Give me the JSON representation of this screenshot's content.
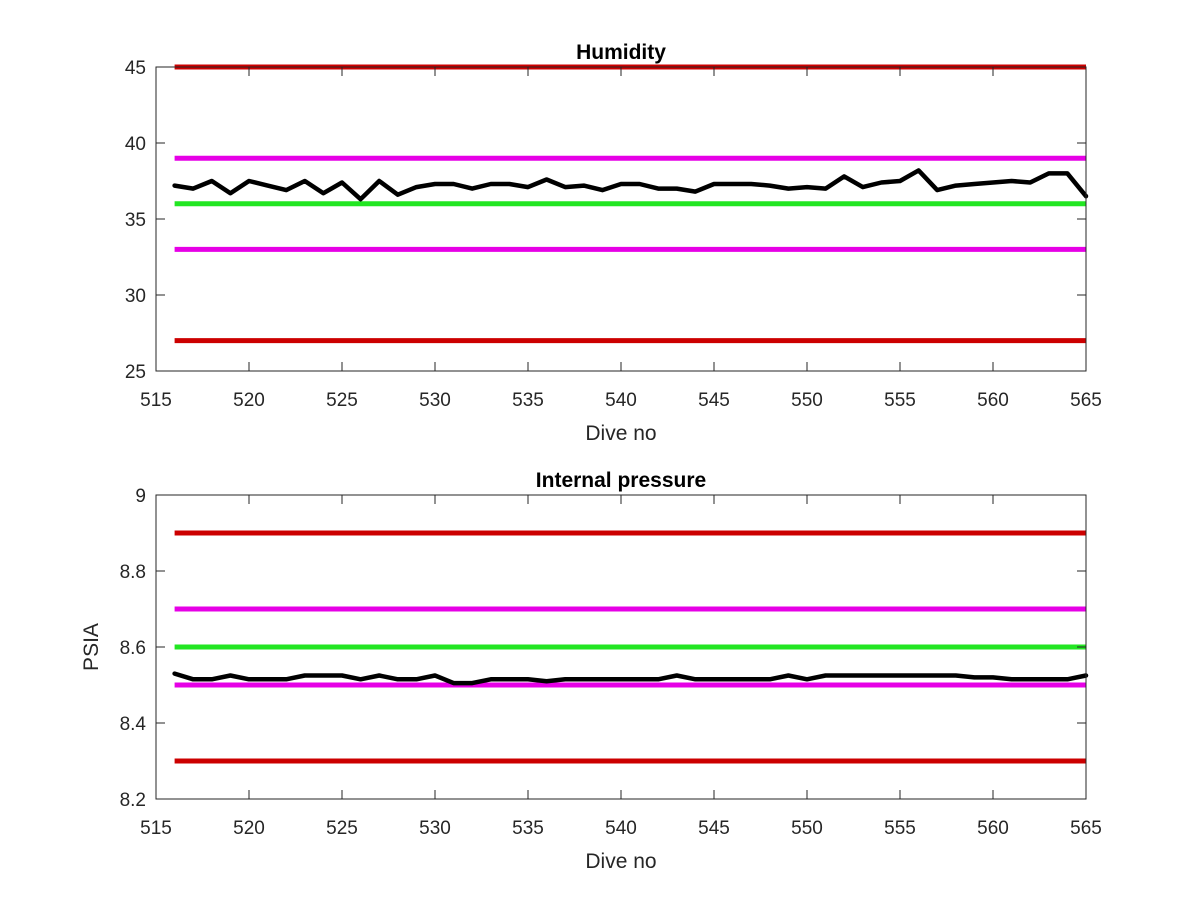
{
  "chart_data": [
    {
      "type": "line",
      "title": "Humidity",
      "xlabel": "Dive no",
      "ylabel": "",
      "xlim": [
        515,
        565
      ],
      "ylim": [
        25,
        45
      ],
      "xticks": [
        515,
        520,
        525,
        530,
        535,
        540,
        545,
        550,
        555,
        560,
        565
      ],
      "yticks": [
        25,
        30,
        35,
        40,
        45
      ],
      "grid": false,
      "reference_lines": [
        {
          "value": 45,
          "color": "#cc0000"
        },
        {
          "value": 39,
          "color": "#e600e6"
        },
        {
          "value": 36,
          "color": "#22e622"
        },
        {
          "value": 33,
          "color": "#e600e6"
        },
        {
          "value": 27,
          "color": "#cc0000"
        }
      ],
      "series": [
        {
          "color": "#000000",
          "x": [
            516,
            517,
            518,
            519,
            520,
            521,
            522,
            523,
            524,
            525,
            526,
            527,
            528,
            529,
            530,
            531,
            532,
            533,
            534,
            535,
            536,
            537,
            538,
            539,
            540,
            541,
            542,
            543,
            544,
            545,
            546,
            547,
            548,
            549,
            550,
            551,
            552,
            553,
            554,
            555,
            556,
            557,
            558,
            559,
            560,
            561,
            562,
            563,
            564,
            565
          ],
          "values": [
            37.2,
            37.0,
            37.5,
            36.7,
            37.5,
            37.2,
            36.9,
            37.5,
            36.7,
            37.4,
            36.3,
            37.5,
            36.6,
            37.1,
            37.3,
            37.3,
            37.0,
            37.3,
            37.3,
            37.1,
            37.6,
            37.1,
            37.2,
            36.9,
            37.3,
            37.3,
            37.0,
            37.0,
            36.8,
            37.3,
            37.3,
            37.3,
            37.2,
            37.0,
            37.1,
            37.0,
            37.8,
            37.1,
            37.4,
            37.5,
            38.2,
            36.9,
            37.2,
            37.3,
            37.4,
            37.5,
            37.4,
            38.0,
            38.0,
            36.5
          ]
        }
      ]
    },
    {
      "type": "line",
      "title": "Internal pressure",
      "xlabel": "Dive no",
      "ylabel": "PSIA",
      "xlim": [
        515,
        565
      ],
      "ylim": [
        8.2,
        9.0
      ],
      "xticks": [
        515,
        520,
        525,
        530,
        535,
        540,
        545,
        550,
        555,
        560,
        565
      ],
      "yticks": [
        8.2,
        8.4,
        8.6,
        8.8,
        9
      ],
      "grid": false,
      "reference_lines": [
        {
          "value": 8.9,
          "color": "#cc0000"
        },
        {
          "value": 8.7,
          "color": "#e600e6"
        },
        {
          "value": 8.6,
          "color": "#22e622"
        },
        {
          "value": 8.5,
          "color": "#e600e6"
        },
        {
          "value": 8.3,
          "color": "#cc0000"
        }
      ],
      "series": [
        {
          "color": "#000000",
          "x": [
            516,
            517,
            518,
            519,
            520,
            521,
            522,
            523,
            524,
            525,
            526,
            527,
            528,
            529,
            530,
            531,
            532,
            533,
            534,
            535,
            536,
            537,
            538,
            539,
            540,
            541,
            542,
            543,
            544,
            545,
            546,
            547,
            548,
            549,
            550,
            551,
            552,
            553,
            554,
            555,
            556,
            557,
            558,
            559,
            560,
            561,
            562,
            563,
            564,
            565
          ],
          "values": [
            8.53,
            8.515,
            8.515,
            8.525,
            8.515,
            8.515,
            8.515,
            8.525,
            8.525,
            8.525,
            8.515,
            8.525,
            8.515,
            8.515,
            8.525,
            8.505,
            8.505,
            8.515,
            8.515,
            8.515,
            8.51,
            8.515,
            8.515,
            8.515,
            8.515,
            8.515,
            8.515,
            8.525,
            8.515,
            8.515,
            8.515,
            8.515,
            8.515,
            8.525,
            8.515,
            8.525,
            8.525,
            8.525,
            8.525,
            8.525,
            8.525,
            8.525,
            8.525,
            8.52,
            8.52,
            8.515,
            8.515,
            8.515,
            8.515,
            8.525
          ]
        }
      ]
    }
  ]
}
